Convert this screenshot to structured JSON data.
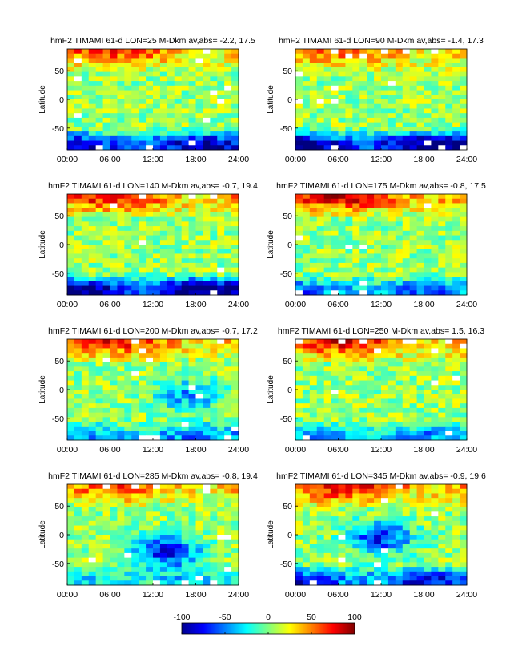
{
  "chart_data": {
    "type": "heatmap",
    "panels": [
      {
        "title": "hmF2 TIMAMI 61-d  LON=25 M-Dkm av,abs= -2.2, 17.5",
        "lon": 25,
        "av": -2.2,
        "abs": 17.5
      },
      {
        "title": "hmF2 TIMAMI 61-d  LON=90 M-Dkm av,abs= -1.4, 17.3",
        "lon": 90,
        "av": -1.4,
        "abs": 17.3
      },
      {
        "title": "hmF2 TIMAMI 61-d  LON=140 M-Dkm av,abs= -0.7, 19.4",
        "lon": 140,
        "av": -0.7,
        "abs": 19.4
      },
      {
        "title": "hmF2 TIMAMI 61-d  LON=175 M-Dkm av,abs= -0.8, 17.5",
        "lon": 175,
        "av": -0.8,
        "abs": 17.5
      },
      {
        "title": "hmF2 TIMAMI 61-d  LON=200 M-Dkm av,abs= -0.7, 17.2",
        "lon": 200,
        "av": -0.7,
        "abs": 17.2
      },
      {
        "title": "hmF2 TIMAMI 61-d  LON=250 M-Dkm av,abs=  1.5, 16.3",
        "lon": 250,
        "av": 1.5,
        "abs": 16.3
      },
      {
        "title": "hmF2 TIMAMI 61-d  LON=285 M-Dkm av,abs= -0.8, 19.4",
        "lon": 285,
        "av": -0.8,
        "abs": 19.4
      },
      {
        "title": "hmF2 TIMAMI 61-d  LON=345 M-Dkm av,abs= -0.9, 19.6",
        "lon": 345,
        "av": -0.9,
        "abs": 19.6
      }
    ],
    "x_ticks": [
      "00:00",
      "06:00",
      "12:00",
      "18:00",
      "24:00"
    ],
    "x_range_hours": [
      0,
      24
    ],
    "y_ticks": [
      50,
      0,
      -50
    ],
    "y_range_deg": [
      -88,
      88
    ],
    "ylabel": "Latitude",
    "colorbar": {
      "ticks": [
        -100,
        -50,
        0,
        50,
        100
      ],
      "range": [
        -100,
        100
      ],
      "colormap": "jet"
    },
    "cell_grid": {
      "time_bins": 24,
      "latitude_bins": 22
    }
  }
}
